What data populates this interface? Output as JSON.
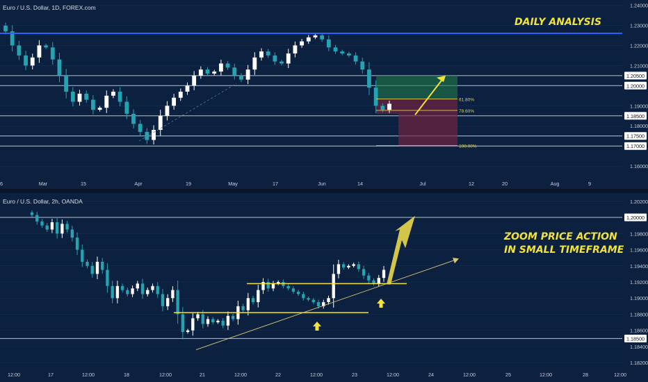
{
  "top_chart": {
    "title": "Euro / U.S. Dollar, 1D, FOREX.com",
    "annotation": "DAILY ANALYSIS"
  },
  "bottom_chart": {
    "title": "Euro / U.S. Dollar, 2h, OANDA",
    "annotation_line1": "ZOOM PRICE ACTION",
    "annotation_line2": "IN SMALL TIMEFRAME"
  },
  "colors": {
    "background": "#0c2140",
    "bull": "#ffffff",
    "bear": "#26a3b1",
    "level": "#b7c3d2",
    "resistance": "#2962ff",
    "annotation": "#f2e33a",
    "fib": "#e3d24a",
    "profit_zone": "#1f7a4a",
    "loss_zone": "#7a2440"
  },
  "chart_data": [
    {
      "type": "candlestick",
      "title": "Euro / U.S. Dollar, 1D, FOREX.com",
      "y_ticks": [
        "1.24000",
        "1.23000",
        "1.22000",
        "1.21000",
        "1.20000",
        "1.19000",
        "1.18000",
        "1.17000",
        "1.16000"
      ],
      "ylim": [
        1.1535,
        1.2405
      ],
      "x_ticks": [
        "6",
        "Mar",
        "15",
        "Apr",
        "19",
        "May",
        "17",
        "Jun",
        "14",
        "Jul",
        "12",
        "20",
        "Aug",
        "9"
      ],
      "level_labels": [
        "1.20500",
        "1.20000",
        "1.18500",
        "1.17500",
        "1.17000"
      ],
      "horizontal_levels": [
        1.205,
        1.2,
        1.185,
        1.175,
        1.17
      ],
      "resistance_level": 1.226,
      "fib_labels": [
        "61.80%",
        "78.60%",
        "100.00%"
      ],
      "fib_levels": [
        1.1934,
        1.1877,
        1.1702
      ],
      "trade_box": {
        "entry_top": 1.1934,
        "entry_bottom": 1.186,
        "target": 1.205,
        "stop": 1.17
      },
      "close_path": [
        1.227,
        1.22,
        1.215,
        1.21,
        1.214,
        1.22,
        1.219,
        1.213,
        1.205,
        1.197,
        1.192,
        1.196,
        1.193,
        1.188,
        1.189,
        1.195,
        1.197,
        1.192,
        1.186,
        1.181,
        1.177,
        1.173,
        1.178,
        1.185,
        1.19,
        1.194,
        1.197,
        1.2,
        1.205,
        1.208,
        1.206,
        1.207,
        1.211,
        1.209,
        1.205,
        1.203,
        1.208,
        1.214,
        1.217,
        1.215,
        1.212,
        1.211,
        1.216,
        1.22,
        1.222,
        1.224,
        1.225,
        1.223,
        1.219,
        1.217,
        1.216,
        1.215,
        1.212,
        1.208,
        1.199,
        1.19,
        1.188,
        1.191
      ]
    },
    {
      "type": "candlestick",
      "title": "Euro / U.S. Dollar, 2h, OANDA",
      "y_ticks": [
        "1.20200",
        "1.20000",
        "1.19800",
        "1.19600",
        "1.19400",
        "1.19200",
        "1.19000",
        "1.18800",
        "1.18600",
        "1.18500",
        "1.18400",
        "1.18200"
      ],
      "ylim": [
        1.1815,
        1.2025
      ],
      "x_ticks": [
        "12:00",
        "17",
        "12:00",
        "18",
        "12:00",
        "21",
        "12:00",
        "22",
        "12:00",
        "23",
        "12:00",
        "24",
        "12:00",
        "25",
        "12:00",
        "28",
        "12:00"
      ],
      "level_labels": [
        "1.20000",
        "1.18500"
      ],
      "horizontal_levels": [
        1.2,
        1.185
      ],
      "support_lines": [
        1.1882,
        1.1918
      ],
      "close_path": [
        1.2003,
        1.1995,
        1.199,
        1.1985,
        1.1994,
        1.198,
        1.1992,
        1.1985,
        1.1975,
        1.196,
        1.1945,
        1.194,
        1.193,
        1.1945,
        1.1935,
        1.1915,
        1.19,
        1.1915,
        1.191,
        1.1905,
        1.1912,
        1.1918,
        1.1905,
        1.191,
        1.1915,
        1.1905,
        1.189,
        1.19,
        1.191,
        1.188,
        1.1858,
        1.186,
        1.1875,
        1.188,
        1.1868,
        1.1874,
        1.187,
        1.1872,
        1.1866,
        1.1878,
        1.1874,
        1.189,
        1.1885,
        1.19,
        1.1895,
        1.191,
        1.192,
        1.1912,
        1.1918,
        1.192,
        1.1915,
        1.1912,
        1.1908,
        1.1905,
        1.19,
        1.1898,
        1.1895,
        1.189,
        1.1895,
        1.19,
        1.193,
        1.1942,
        1.1938,
        1.194,
        1.1942,
        1.1936,
        1.1928,
        1.1922,
        1.1918,
        1.1925,
        1.1935
      ]
    }
  ]
}
